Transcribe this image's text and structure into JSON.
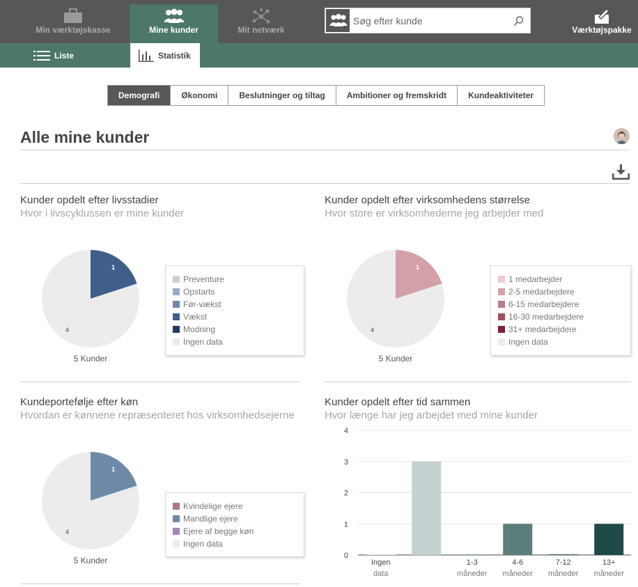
{
  "nav": {
    "toolbox_label": "Min værktøjskasse",
    "clients_label": "Mine kunder",
    "network_label": "Mit netværk",
    "tools_label": "Værktøjspakke"
  },
  "search": {
    "placeholder": "Søg efter kunde"
  },
  "subnav": {
    "list_label": "Liste",
    "stats_label": "Statistik"
  },
  "tabs": [
    {
      "label": "Demografi",
      "active": true
    },
    {
      "label": "Økonomi",
      "active": false
    },
    {
      "label": "Beslutninger og tiltag",
      "active": false
    },
    {
      "label": "Ambitioner og fremskridt",
      "active": false
    },
    {
      "label": "Kundeaktiviteter",
      "active": false
    }
  ],
  "page": {
    "title": "Alle mine kunder"
  },
  "panels": {
    "lifecycle": {
      "title": "Kunder opdelt efter livsstadier",
      "subtitle": "Hvor i livscyklussen er mine kunder",
      "caption": "5 Kunder",
      "slice_labels": {
        "main": "1",
        "rest": "4"
      },
      "legend": [
        {
          "label": "Preventure",
          "color": "#c5d2de"
        },
        {
          "label": "Opstarts",
          "color": "#97abc4"
        },
        {
          "label": "Før-vækst",
          "color": "#6f8aac"
        },
        {
          "label": "Vækst",
          "color": "#3f5f8a"
        },
        {
          "label": "Modning",
          "color": "#1d3b66"
        },
        {
          "label": "Ingen data",
          "color": "#ececec"
        }
      ]
    },
    "size": {
      "title": "Kunder opdelt efter virksomhedens størrelse",
      "subtitle": "Hvor store er virksomhederne jeg arbejder med",
      "caption": "5 Kunder",
      "slice_labels": {
        "main": "1",
        "rest": "4"
      },
      "legend": [
        {
          "label": "1 medarbejder",
          "color": "#efcbd0"
        },
        {
          "label": "2-5 medarbejdere",
          "color": "#d4a0a7"
        },
        {
          "label": "6-15 medarbejdere",
          "color": "#bd7a84"
        },
        {
          "label": "16-30 medarbejdere",
          "color": "#a24f5e"
        },
        {
          "label": "31+ medarbejdere",
          "color": "#7f2334"
        },
        {
          "label": "Ingen data",
          "color": "#ececec"
        }
      ]
    },
    "gender": {
      "title": "Kundeportefølje efter køn",
      "subtitle": "Hvordan er kønnene repræsenteret hos virksomhedsejerne",
      "caption": "5 Kunder",
      "slice_labels": {
        "main": "1",
        "rest": "4"
      },
      "legend": [
        {
          "label": "Kvindelige ejere",
          "color": "#b27580"
        },
        {
          "label": "Mandlige ejere",
          "color": "#6e8aa8"
        },
        {
          "label": "Ejere af begge køn",
          "color": "#a585bd"
        },
        {
          "label": "Ingen data",
          "color": "#ececec"
        }
      ]
    },
    "tenure": {
      "title": "Kunder opdelt efter tid sammen",
      "subtitle": "Hvor længe har jeg arbejdet med mine kunder"
    }
  },
  "chart_data": [
    {
      "type": "pie",
      "title": "Kunder opdelt efter livsstadier",
      "labels": [
        "Vækst",
        "Ingen data"
      ],
      "values": [
        1,
        4
      ],
      "colors": [
        "#3f5f8a",
        "#ececec"
      ]
    },
    {
      "type": "pie",
      "title": "Kunder opdelt efter virksomhedens størrelse",
      "labels": [
        "2-5 medarbejdere",
        "Ingen data"
      ],
      "values": [
        1,
        4
      ],
      "colors": [
        "#d4a0a7",
        "#ececec"
      ]
    },
    {
      "type": "pie",
      "title": "Kundeportefølje efter køn",
      "labels": [
        "Mandlige ejere",
        "Ingen data"
      ],
      "values": [
        1,
        4
      ],
      "colors": [
        "#6e8aa8",
        "#ececec"
      ]
    },
    {
      "type": "bar",
      "title": "Kunder opdelt efter tid sammen",
      "categories": [
        "Ingen data",
        "",
        "1-3 måneder",
        "4-6 måneder",
        "7-12 måneder",
        "13+ måneder"
      ],
      "category_lines": [
        [
          "Ingen",
          "data"
        ],
        [
          "",
          ""
        ],
        [
          "1-3",
          "måneder"
        ],
        [
          "4-6",
          "måneder"
        ],
        [
          "7-12",
          "måneder"
        ],
        [
          "13+",
          "måneder"
        ]
      ],
      "values": [
        0,
        3,
        0,
        1,
        0,
        1
      ],
      "colors": [
        "#e4e4e4",
        "#c3d1d1",
        "#8fa8a6",
        "#5b7e7c",
        "#3b6461",
        "#1f4a48"
      ],
      "ylim": [
        0,
        4
      ],
      "yticks": [
        0,
        1,
        2,
        3,
        4
      ]
    }
  ]
}
